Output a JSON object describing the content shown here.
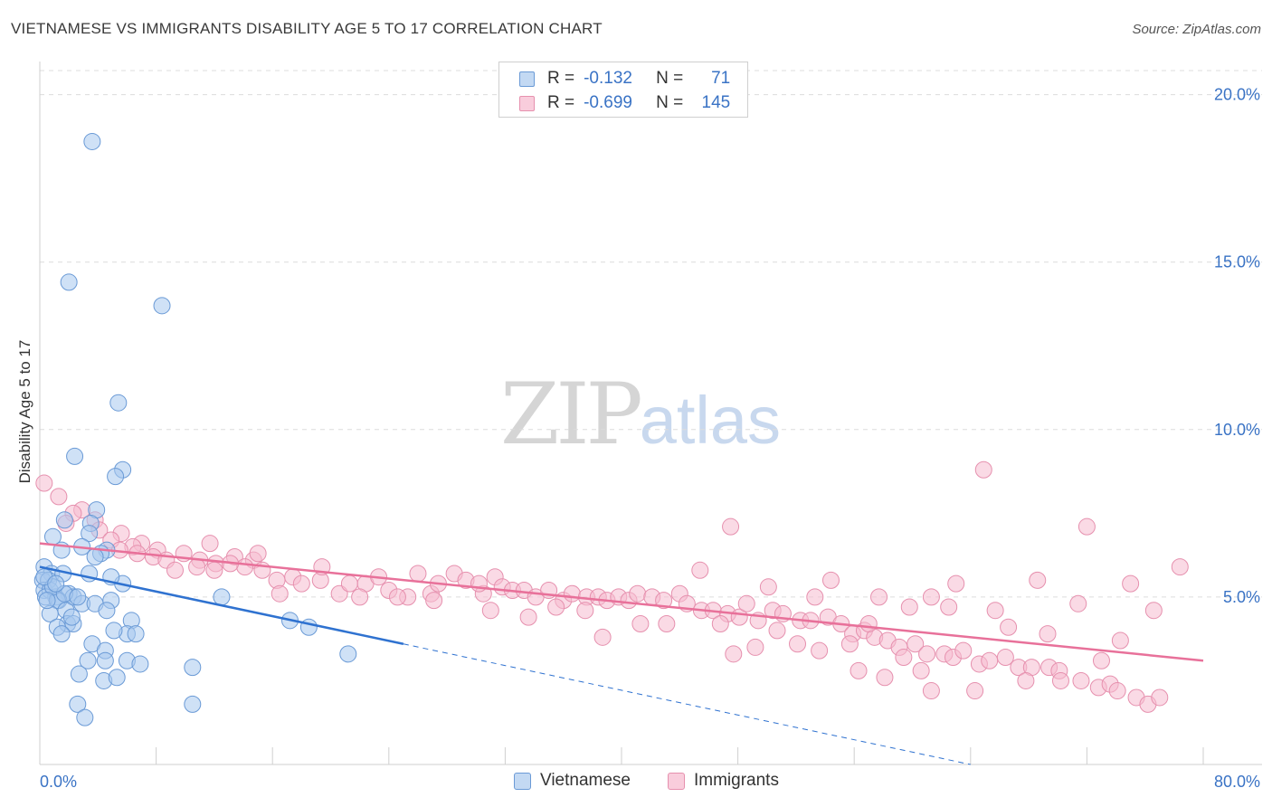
{
  "title": "VIETNAMESE VS IMMIGRANTS DISABILITY AGE 5 TO 17 CORRELATION CHART",
  "source": "Source: ZipAtlas.com",
  "watermark": {
    "zip": "ZIP",
    "atlas": "atlas"
  },
  "legend_top": [
    {
      "r_label": "R =",
      "r_value": "-0.132",
      "n_label": "N =",
      "n_value": "71"
    },
    {
      "r_label": "R =",
      "r_value": "-0.699",
      "n_label": "N =",
      "n_value": "145"
    }
  ],
  "colors": {
    "vietnamese_fill": "#a8c8ee",
    "vietnamese_stroke": "#6a9ad6",
    "vietnamese_line": "#2f72d0",
    "immigrants_fill": "#f6bcd0",
    "immigrants_stroke": "#e690ae",
    "immigrants_line": "#e8719a",
    "tick_label": "#3a73c5"
  },
  "chart_data": {
    "type": "scatter",
    "title": "VIETNAMESE VS IMMIGRANTS DISABILITY AGE 5 TO 17 CORRELATION CHART",
    "xlabel": "",
    "ylabel": "Disability Age 5 to 17",
    "xlim": [
      0,
      80
    ],
    "ylim": [
      0,
      20.8
    ],
    "x_tick_labels": [
      "0.0%",
      "80.0%"
    ],
    "y_ticks": [
      5,
      10,
      15,
      20
    ],
    "y_tick_labels": [
      "5.0%",
      "10.0%",
      "15.0%",
      "20.0%"
    ],
    "grid": true,
    "legend_position": "bottom-center",
    "series": [
      {
        "name": "Vietnamese",
        "trend": {
          "x": [
            0,
            25
          ],
          "y": [
            5.9,
            3.6
          ],
          "dashed_extension_to": [
            64,
            0.0
          ]
        },
        "points": [
          [
            3.6,
            18.6
          ],
          [
            2.0,
            14.4
          ],
          [
            8.4,
            13.7
          ],
          [
            5.4,
            10.8
          ],
          [
            2.4,
            9.2
          ],
          [
            5.7,
            8.8
          ],
          [
            5.2,
            8.6
          ],
          [
            3.9,
            7.6
          ],
          [
            3.5,
            7.2
          ],
          [
            1.7,
            7.3
          ],
          [
            3.4,
            6.9
          ],
          [
            0.9,
            6.8
          ],
          [
            2.9,
            6.5
          ],
          [
            4.6,
            6.4
          ],
          [
            1.5,
            6.4
          ],
          [
            4.2,
            6.3
          ],
          [
            0.3,
            5.9
          ],
          [
            0.8,
            5.7
          ],
          [
            1.6,
            5.7
          ],
          [
            3.4,
            5.7
          ],
          [
            0.2,
            5.5
          ],
          [
            0.6,
            5.5
          ],
          [
            5.7,
            5.4
          ],
          [
            0.3,
            5.2
          ],
          [
            0.7,
            5.2
          ],
          [
            1.1,
            5.0
          ],
          [
            2.0,
            5.1
          ],
          [
            2.3,
            5.0
          ],
          [
            0.4,
            5.0
          ],
          [
            1.3,
            4.9
          ],
          [
            1.2,
            4.9
          ],
          [
            2.9,
            4.8
          ],
          [
            3.8,
            4.8
          ],
          [
            4.9,
            4.9
          ],
          [
            12.5,
            5.0
          ],
          [
            4.6,
            4.6
          ],
          [
            0.7,
            4.5
          ],
          [
            1.8,
            4.6
          ],
          [
            6.3,
            4.3
          ],
          [
            17.2,
            4.3
          ],
          [
            1.9,
            4.2
          ],
          [
            1.2,
            4.1
          ],
          [
            2.3,
            4.2
          ],
          [
            6.0,
            3.9
          ],
          [
            5.1,
            4.0
          ],
          [
            6.6,
            3.9
          ],
          [
            1.5,
            3.9
          ],
          [
            18.5,
            4.1
          ],
          [
            3.6,
            3.6
          ],
          [
            4.5,
            3.4
          ],
          [
            3.3,
            3.1
          ],
          [
            4.5,
            3.1
          ],
          [
            6.0,
            3.1
          ],
          [
            6.9,
            3.0
          ],
          [
            21.2,
            3.3
          ],
          [
            2.7,
            2.7
          ],
          [
            10.5,
            2.9
          ],
          [
            4.4,
            2.5
          ],
          [
            5.3,
            2.6
          ],
          [
            2.6,
            1.8
          ],
          [
            10.5,
            1.8
          ],
          [
            3.1,
            1.4
          ],
          [
            0.9,
            5.3
          ],
          [
            1.7,
            5.1
          ],
          [
            0.5,
            4.9
          ],
          [
            2.6,
            5.0
          ],
          [
            3.8,
            6.2
          ],
          [
            0.3,
            5.6
          ],
          [
            1.1,
            5.4
          ],
          [
            4.9,
            5.6
          ],
          [
            2.2,
            4.4
          ]
        ]
      },
      {
        "name": "Immigrants",
        "trend": {
          "x": [
            0,
            80
          ],
          "y": [
            6.6,
            3.1
          ]
        },
        "points": [
          [
            0.3,
            8.4
          ],
          [
            1.3,
            8.0
          ],
          [
            2.9,
            7.6
          ],
          [
            2.3,
            7.5
          ],
          [
            3.8,
            7.3
          ],
          [
            1.8,
            7.2
          ],
          [
            4.1,
            7.0
          ],
          [
            5.6,
            6.9
          ],
          [
            4.9,
            6.7
          ],
          [
            7.0,
            6.6
          ],
          [
            6.4,
            6.5
          ],
          [
            8.1,
            6.4
          ],
          [
            5.5,
            6.4
          ],
          [
            6.7,
            6.3
          ],
          [
            9.9,
            6.3
          ],
          [
            7.8,
            6.2
          ],
          [
            11.0,
            6.1
          ],
          [
            13.4,
            6.2
          ],
          [
            12.1,
            6.0
          ],
          [
            14.7,
            6.1
          ],
          [
            14.1,
            5.9
          ],
          [
            15.0,
            6.3
          ],
          [
            10.8,
            5.9
          ],
          [
            8.7,
            6.1
          ],
          [
            9.3,
            5.8
          ],
          [
            12.0,
            5.8
          ],
          [
            13.1,
            6.0
          ],
          [
            15.3,
            5.8
          ],
          [
            16.3,
            5.5
          ],
          [
            17.4,
            5.6
          ],
          [
            18.0,
            5.4
          ],
          [
            19.3,
            5.5
          ],
          [
            19.4,
            5.9
          ],
          [
            20.6,
            5.1
          ],
          [
            21.3,
            5.4
          ],
          [
            22.4,
            5.4
          ],
          [
            23.3,
            5.6
          ],
          [
            24.0,
            5.2
          ],
          [
            25.3,
            5.0
          ],
          [
            26.0,
            5.7
          ],
          [
            26.9,
            5.1
          ],
          [
            27.4,
            5.4
          ],
          [
            28.5,
            5.7
          ],
          [
            29.3,
            5.5
          ],
          [
            30.5,
            5.1
          ],
          [
            31.3,
            5.6
          ],
          [
            31.8,
            5.3
          ],
          [
            32.5,
            5.2
          ],
          [
            33.3,
            5.2
          ],
          [
            34.1,
            5.0
          ],
          [
            35.0,
            5.2
          ],
          [
            36.0,
            4.9
          ],
          [
            36.6,
            5.1
          ],
          [
            37.6,
            5.0
          ],
          [
            38.4,
            5.0
          ],
          [
            39.0,
            4.9
          ],
          [
            39.8,
            5.0
          ],
          [
            40.5,
            4.9
          ],
          [
            41.1,
            5.1
          ],
          [
            42.1,
            5.0
          ],
          [
            42.9,
            4.9
          ],
          [
            44.0,
            5.1
          ],
          [
            44.5,
            4.8
          ],
          [
            45.5,
            4.6
          ],
          [
            46.3,
            4.6
          ],
          [
            47.3,
            4.5
          ],
          [
            48.1,
            4.4
          ],
          [
            48.6,
            4.8
          ],
          [
            49.4,
            4.3
          ],
          [
            50.4,
            4.6
          ],
          [
            51.1,
            4.5
          ],
          [
            52.3,
            4.3
          ],
          [
            53.0,
            4.3
          ],
          [
            53.3,
            5.0
          ],
          [
            54.2,
            4.4
          ],
          [
            55.1,
            4.2
          ],
          [
            55.9,
            3.9
          ],
          [
            56.7,
            4.0
          ],
          [
            57.4,
            3.8
          ],
          [
            58.3,
            3.7
          ],
          [
            59.1,
            3.5
          ],
          [
            60.2,
            3.6
          ],
          [
            61.0,
            3.3
          ],
          [
            62.2,
            3.3
          ],
          [
            62.8,
            3.2
          ],
          [
            63.5,
            3.4
          ],
          [
            64.6,
            3.0
          ],
          [
            65.3,
            3.1
          ],
          [
            66.4,
            3.2
          ],
          [
            67.3,
            2.9
          ],
          [
            68.2,
            2.9
          ],
          [
            69.4,
            2.9
          ],
          [
            70.1,
            2.8
          ],
          [
            71.6,
            2.5
          ],
          [
            72.8,
            2.3
          ],
          [
            73.6,
            2.4
          ],
          [
            74.1,
            2.2
          ],
          [
            75.4,
            2.0
          ],
          [
            76.2,
            1.8
          ],
          [
            77.0,
            2.0
          ],
          [
            72.0,
            7.1
          ],
          [
            64.9,
            8.8
          ],
          [
            47.5,
            7.1
          ],
          [
            54.4,
            5.5
          ],
          [
            45.4,
            5.8
          ],
          [
            50.1,
            5.3
          ],
          [
            57.7,
            5.0
          ],
          [
            61.3,
            5.0
          ],
          [
            63.0,
            5.4
          ],
          [
            65.7,
            4.6
          ],
          [
            68.6,
            5.5
          ],
          [
            71.4,
            4.8
          ],
          [
            78.4,
            5.9
          ],
          [
            75.0,
            5.4
          ],
          [
            76.6,
            4.6
          ],
          [
            69.3,
            3.9
          ],
          [
            73.0,
            3.1
          ],
          [
            59.8,
            4.7
          ],
          [
            66.6,
            4.1
          ],
          [
            62.5,
            4.7
          ],
          [
            52.1,
            3.6
          ],
          [
            56.3,
            2.8
          ],
          [
            58.1,
            2.6
          ],
          [
            60.6,
            2.8
          ],
          [
            61.3,
            2.2
          ],
          [
            64.3,
            2.2
          ],
          [
            67.8,
            2.5
          ],
          [
            70.2,
            2.5
          ],
          [
            74.3,
            3.7
          ],
          [
            41.3,
            4.2
          ],
          [
            38.7,
            3.8
          ],
          [
            43.1,
            4.2
          ],
          [
            46.8,
            4.2
          ],
          [
            49.2,
            3.5
          ],
          [
            50.7,
            4.0
          ],
          [
            47.7,
            3.3
          ],
          [
            53.6,
            3.4
          ],
          [
            55.7,
            3.6
          ],
          [
            57.0,
            4.2
          ],
          [
            59.4,
            3.2
          ],
          [
            35.5,
            4.7
          ],
          [
            37.5,
            4.6
          ],
          [
            31.0,
            4.6
          ],
          [
            33.6,
            4.4
          ],
          [
            30.2,
            5.4
          ],
          [
            27.1,
            4.9
          ],
          [
            24.6,
            5.0
          ],
          [
            16.5,
            5.1
          ],
          [
            22.0,
            5.0
          ],
          [
            11.7,
            6.6
          ]
        ]
      }
    ]
  }
}
